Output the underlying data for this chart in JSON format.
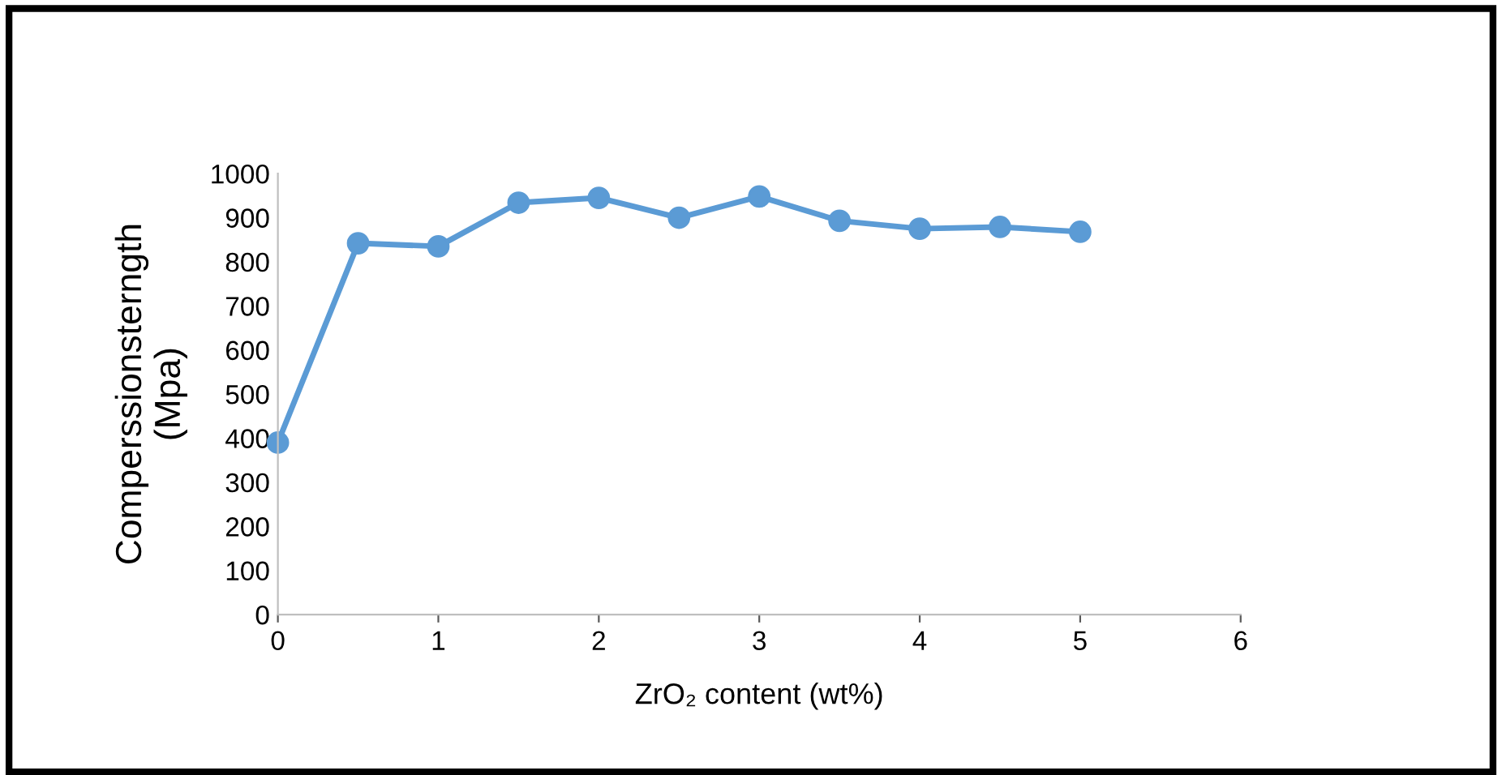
{
  "chart_data": {
    "type": "line",
    "xlabel": "ZrO₂ content (wt%)",
    "ylabel": "Comperssionsterngth\n(Mpa)",
    "x": [
      0,
      0.5,
      1,
      1.5,
      2,
      2.5,
      3,
      3.5,
      4,
      4.5,
      5
    ],
    "series": [
      {
        "color": "#5b9bd5",
        "values": [
          390,
          842,
          835,
          934,
          945,
          900,
          948,
          893,
          875,
          879,
          868
        ]
      }
    ],
    "xlim": [
      0,
      6
    ],
    "xticks": [
      0,
      1,
      2,
      3,
      4,
      5,
      6
    ],
    "ylim": [
      0,
      1000
    ],
    "yticks": [
      0,
      100,
      200,
      300,
      400,
      500,
      600,
      700,
      800,
      900,
      1000
    ],
    "grid": false,
    "legend": false,
    "marker": "circle",
    "line_style": "solid"
  }
}
